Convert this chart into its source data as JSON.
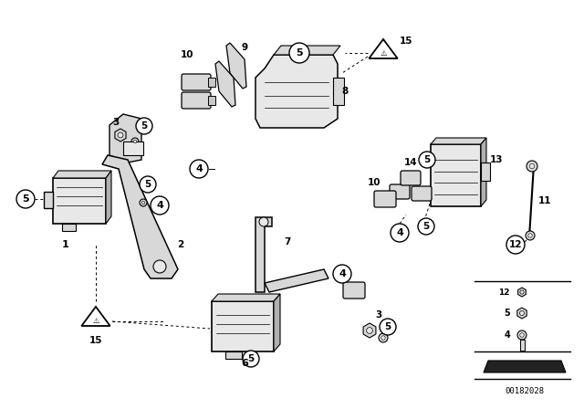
{
  "bg_color": "#ffffff",
  "line_color": "#000000",
  "part_number_label": "00182028",
  "fig_width": 6.4,
  "fig_height": 4.48,
  "dpi": 100,
  "gray1": "#c8c8c8",
  "gray2": "#d8d8d8",
  "gray3": "#e8e8e8",
  "gray4": "#b0b0b0"
}
